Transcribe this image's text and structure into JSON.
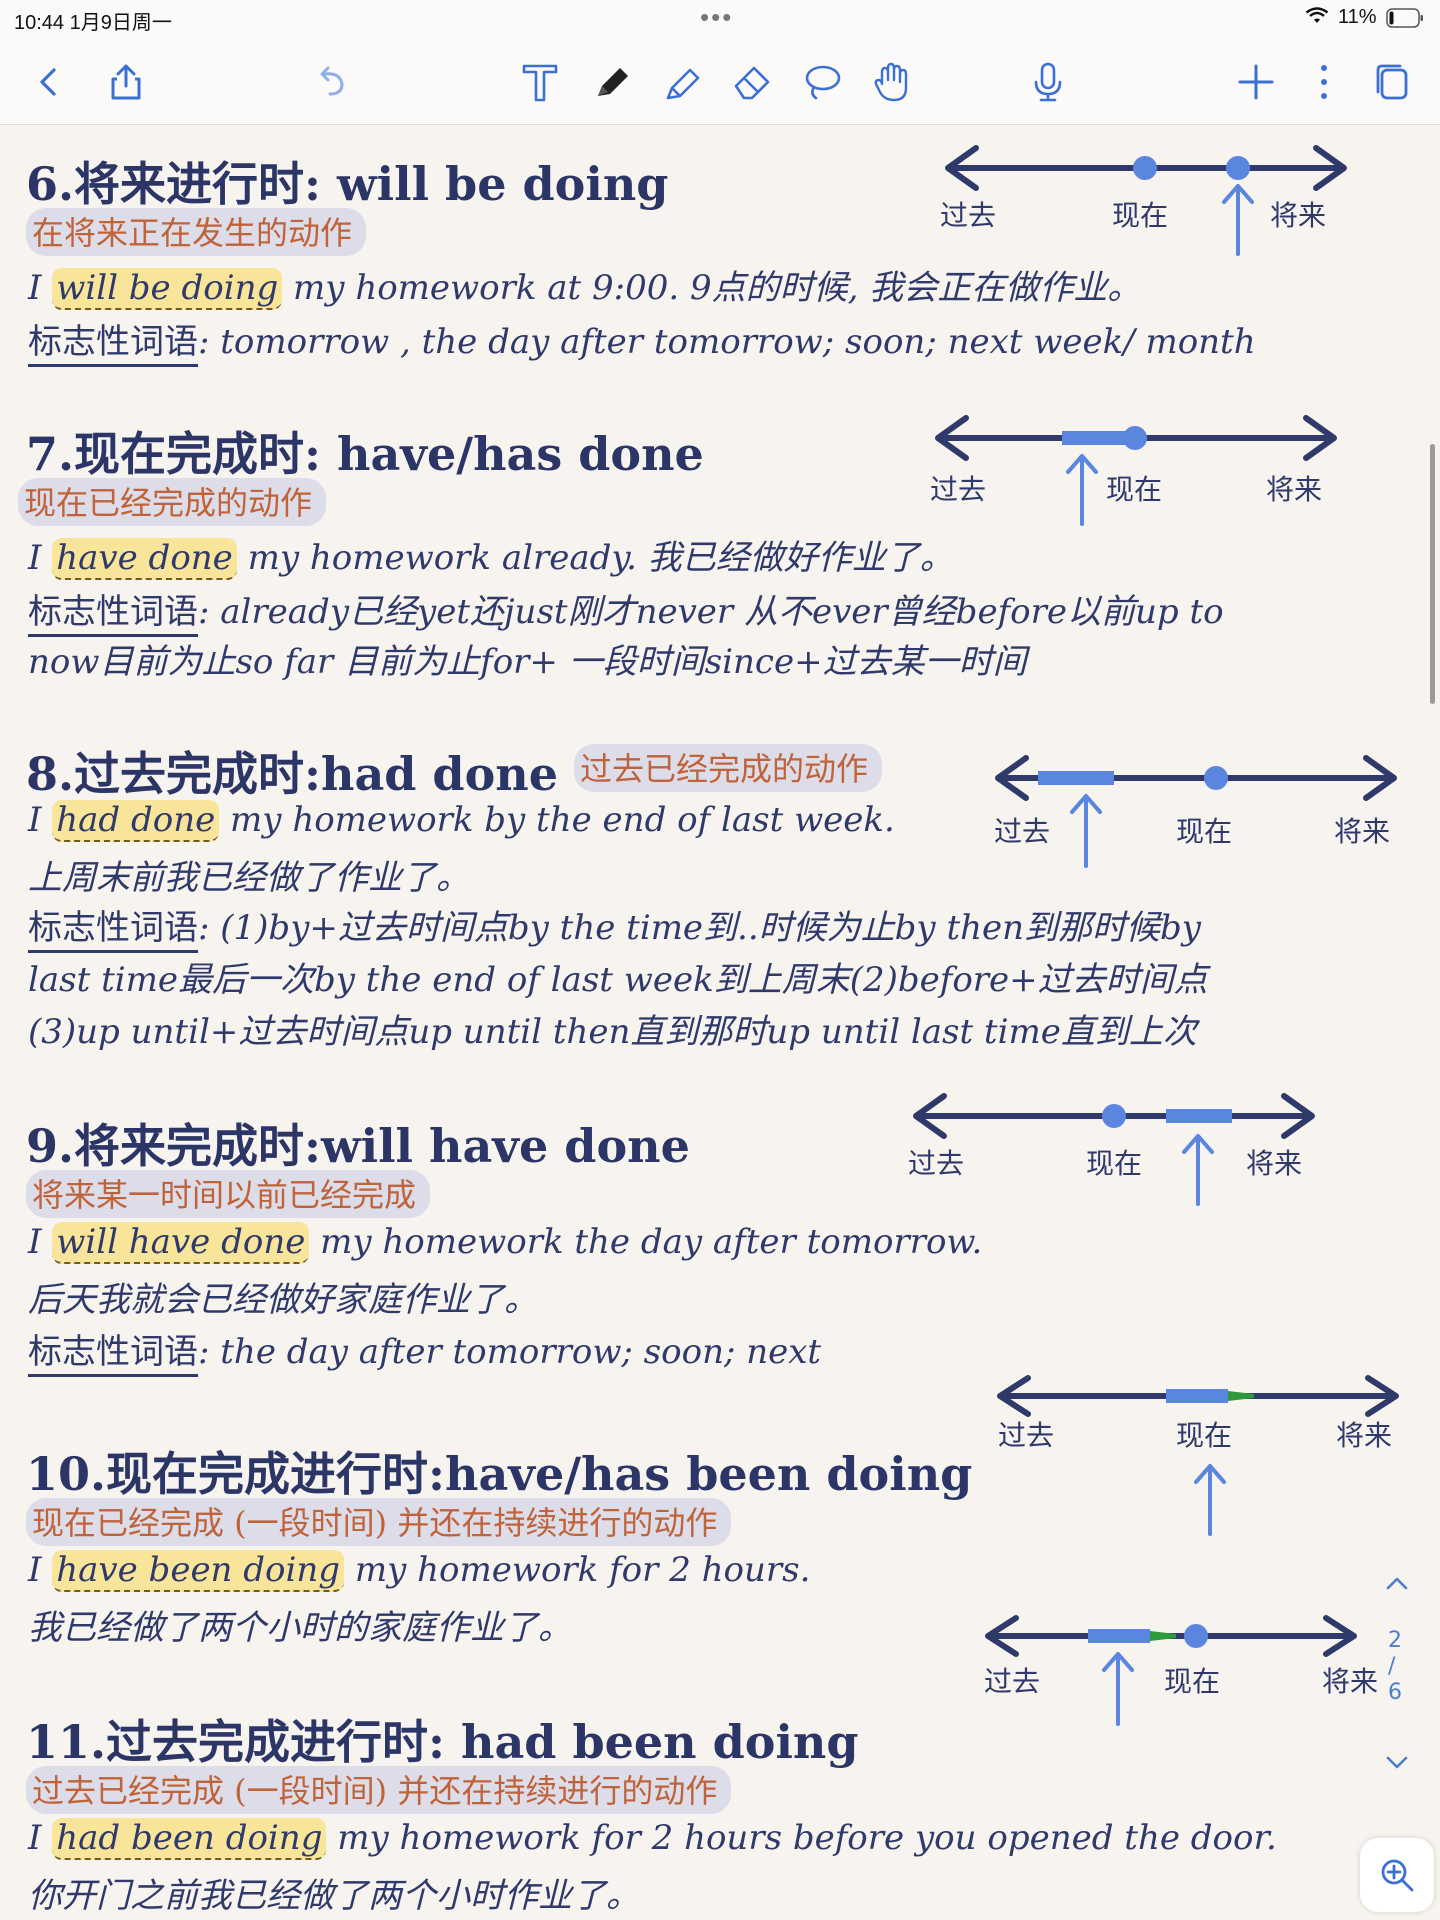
{
  "status_bar": {
    "time": "10:44  1月9日周一",
    "dots": "•••",
    "battery_percent": "11%"
  },
  "toolbar": {
    "icons": [
      "back-icon",
      "share-icon",
      "undo-icon",
      "text-tool-icon",
      "pen-icon",
      "highlighter-icon",
      "eraser-icon",
      "lasso-icon",
      "hand-icon",
      "microphone-icon",
      "add-icon",
      "more-icon",
      "pages-icon"
    ]
  },
  "timeline_labels": {
    "past": "过去",
    "present": "现在",
    "future": "将来"
  },
  "sections": [
    {
      "title": "6.将来进行时: will be doing",
      "label": "在将来正在发生的动作",
      "example_pre": "I ",
      "example_hl": "will be doing",
      "example_post": " my homework at 9:00. 9点的时候, 我会正在做作业。",
      "signal_label": "标志性词语",
      "signal_text": ": tomorrow , the day after tomorrow; soon; next week/ month"
    },
    {
      "title": "7.现在完成时: have/has done",
      "label": "现在已经完成的动作",
      "example_pre": "I ",
      "example_hl": "have done",
      "example_post": " my homework already. 我已经做好作业了。",
      "signal_label": "标志性词语",
      "signal_text": ": already已经yet还just刚才never 从不ever曾经before以前up to",
      "extra_line": "now目前为止so far 目前为止for+ 一段时间since+过去某一时间"
    },
    {
      "title": "8.过去完成时:had done",
      "label": "过去已经完成的动作",
      "example_pre": "I ",
      "example_hl": "had done",
      "example_post": " my homework by the end of last week.",
      "translation": "上周末前我已经做了作业了。",
      "signal_label": "标志性词语",
      "signal_text": ": (1)by+过去时间点by the time到..时候为止by then到那时候by",
      "extra_line": "last time最后一次by the end of last week到上周末(2)before+过去时间点",
      "extra_line_2": "(3)up until+过去时间点up until then直到那时up until last time直到上次"
    },
    {
      "title": "9.将来完成时:will have done",
      "label": "将来某一时间以前已经完成",
      "example_pre": "I ",
      "example_hl": "will have done",
      "example_post": " my homework the day after tomorrow.",
      "translation": "后天我就会已经做好家庭作业了。",
      "signal_label": "标志性词语",
      "signal_text": ": the day after tomorrow; soon; next"
    },
    {
      "title": "10.现在完成进行时:have/has been doing",
      "label": "现在已经完成 (一段时间) 并还在持续进行的动作",
      "example_pre": "I ",
      "example_hl": "have been doing",
      "example_post": " my homework for 2 hours.",
      "translation": "我已经做了两个小时的家庭作业了。"
    },
    {
      "title": "11.过去完成进行时: had been doing",
      "label": "过去已经完成 (一段时间) 并还在持续进行的动作",
      "example_pre": "I ",
      "example_hl": "had been doing",
      "example_post": " my homework for 2 hours before you opened the door.",
      "translation": "你开门之前我已经做了两个小时作业了。"
    }
  ],
  "pager": {
    "current": "2",
    "separator": "/",
    "total": "6"
  },
  "colors": {
    "ink": "#2f3a6b",
    "marker_blue": "#5b86e0",
    "label_orange": "#c0623a",
    "highlight_yellow": "#f8e59a",
    "pill_gray": "#dcdde8",
    "green_tip": "#2e9a3c"
  }
}
